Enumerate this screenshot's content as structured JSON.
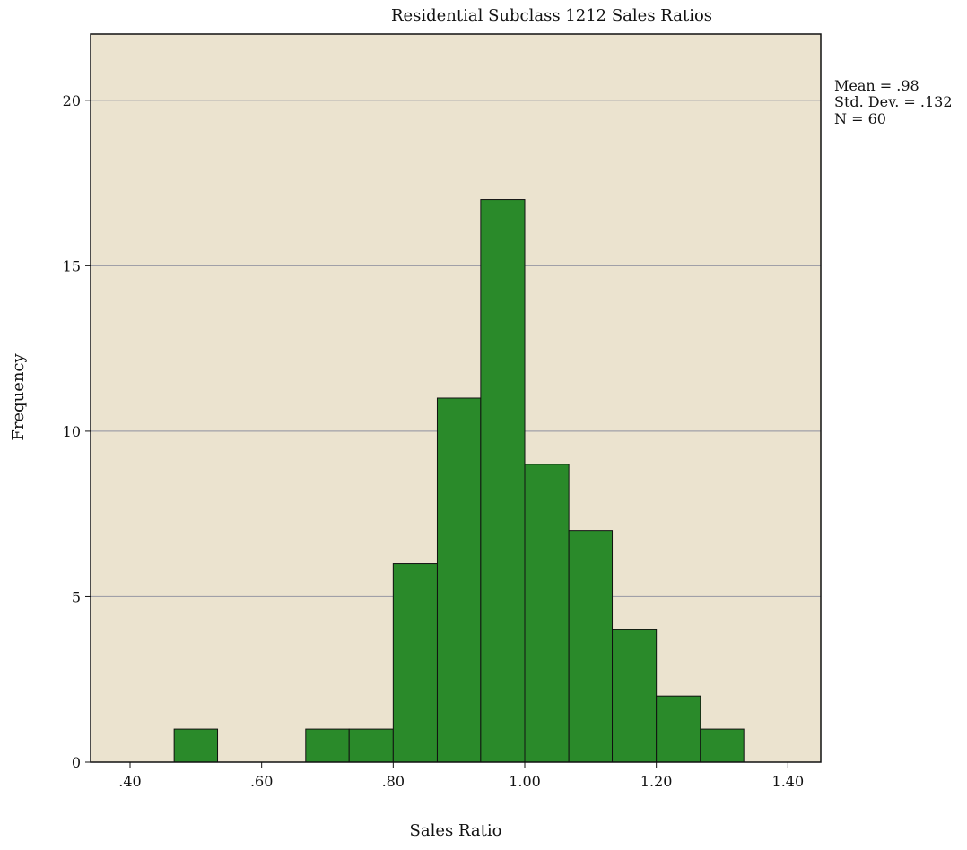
{
  "chart_data": {
    "type": "bar",
    "title": "Residential Subclass 1212 Sales Ratios",
    "xlabel": "Sales Ratio",
    "ylabel": "Frequency",
    "bin_width": 0.0667,
    "bins": [
      {
        "start": 0.467,
        "end": 0.533,
        "count": 1
      },
      {
        "start": 0.533,
        "end": 0.6,
        "count": 0
      },
      {
        "start": 0.6,
        "end": 0.667,
        "count": 0
      },
      {
        "start": 0.667,
        "end": 0.733,
        "count": 1
      },
      {
        "start": 0.733,
        "end": 0.8,
        "count": 1
      },
      {
        "start": 0.8,
        "end": 0.867,
        "count": 6
      },
      {
        "start": 0.867,
        "end": 0.933,
        "count": 11
      },
      {
        "start": 0.933,
        "end": 1.0,
        "count": 17
      },
      {
        "start": 1.0,
        "end": 1.067,
        "count": 9
      },
      {
        "start": 1.067,
        "end": 1.133,
        "count": 7
      },
      {
        "start": 1.133,
        "end": 1.2,
        "count": 4
      },
      {
        "start": 1.2,
        "end": 1.267,
        "count": 2
      },
      {
        "start": 1.267,
        "end": 1.333,
        "count": 1
      }
    ],
    "xlim": [
      0.34,
      1.45
    ],
    "ylim": [
      0,
      22
    ],
    "x_ticks": [
      {
        "value": 0.4,
        "label": ".40"
      },
      {
        "value": 0.6,
        "label": ".60"
      },
      {
        "value": 0.8,
        "label": ".80"
      },
      {
        "value": 1.0,
        "label": "1.00"
      },
      {
        "value": 1.2,
        "label": "1.20"
      },
      {
        "value": 1.4,
        "label": "1.40"
      }
    ],
    "y_ticks": [
      {
        "value": 0,
        "label": "0"
      },
      {
        "value": 5,
        "label": "5"
      },
      {
        "value": 10,
        "label": "10"
      },
      {
        "value": 15,
        "label": "15"
      },
      {
        "value": 20,
        "label": "20"
      }
    ],
    "grid": "horizontal",
    "stats": [
      "Mean = .98",
      "Std. Dev. = .132",
      "N = 60"
    ],
    "colors": {
      "bar_fill": "#2a8a2a",
      "bar_stroke": "#111111",
      "plot_background": "#ebe3cf",
      "gridline": "#a0a0a8",
      "frame": "#111111"
    }
  }
}
